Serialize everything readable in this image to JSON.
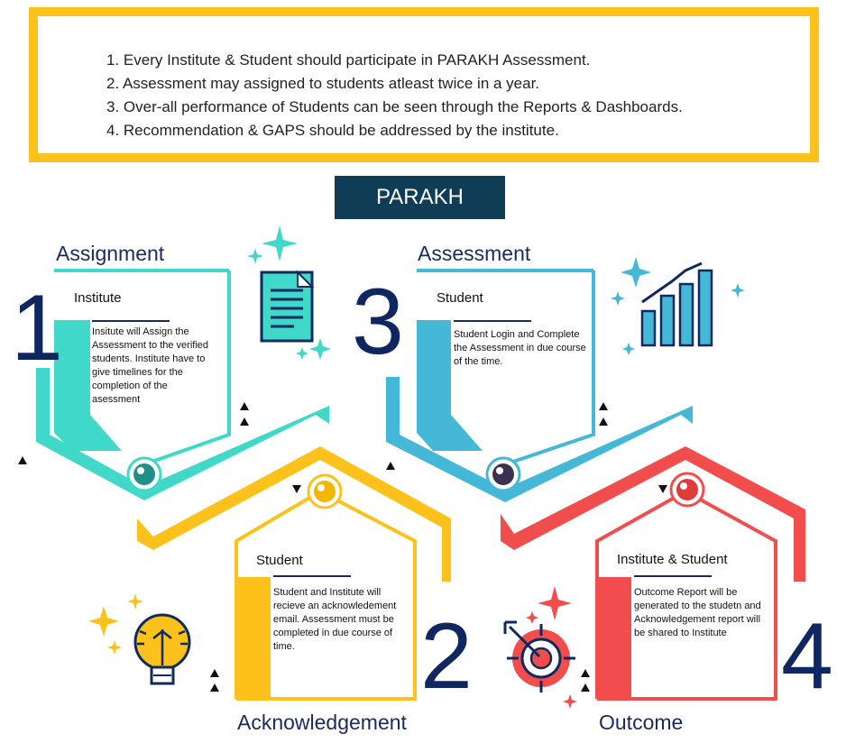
{
  "rules": [
    "1. Every Institute & Student should participate in PARAKH Assessment.",
    "2. Assessment may assigned to students atleast twice in a year.",
    "3. Over-all performance  of Students can be seen through the Reports & Dashboards.",
    "4. Recommendation & GAPS should be addressed by the institute."
  ],
  "title": "PARAKH",
  "steps": [
    {
      "number": "1",
      "phase": "Assignment",
      "actor": "Institute",
      "text": "Insitute will Assign the Assessment to the verified students. Institute have to give timelines for the completion of the asessment",
      "color": "#3FD8C9",
      "icon": "document-icon"
    },
    {
      "number": "2",
      "phase": "Acknowledgement",
      "actor": "Student",
      "text": "Student and Institute will recieve an acknowledement email. Assessment must be completed in due course of time.",
      "color": "#FCC21B",
      "icon": "lightbulb-icon"
    },
    {
      "number": "3",
      "phase": "Assessment",
      "actor": "Student",
      "text": "Student Login and Complete the Assessment in due course of the time.",
      "color": "#45B8D8",
      "icon": "bar-chart-icon"
    },
    {
      "number": "4",
      "phase": "Outcome",
      "actor": "Institute & Student",
      "text": "Outcome Report will be generated to the studetn and Acknowledgement report will be shared to Institute",
      "color": "#F24D4D",
      "icon": "target-icon"
    }
  ]
}
